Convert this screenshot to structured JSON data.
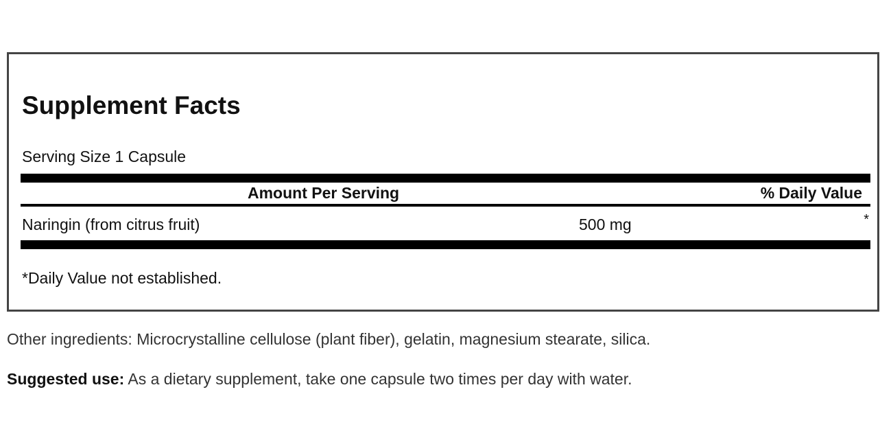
{
  "facts": {
    "title": "Supplement Facts",
    "serving_size": "Serving Size 1 Capsule",
    "header_amount": "Amount Per Serving",
    "header_daily_value": "% Daily Value",
    "rows": [
      {
        "name": "Naringin (from citrus fruit)",
        "amount": "500 mg",
        "daily_value": "*"
      }
    ],
    "footnote": "*Daily Value not established."
  },
  "other_ingredients": "Other ingredients: Microcrystalline cellulose (plant fiber), gelatin, magnesium stearate, silica.",
  "suggested_use": {
    "label": "Suggested use:",
    "text": " As a dietary supplement, take one capsule two times per day with water."
  }
}
